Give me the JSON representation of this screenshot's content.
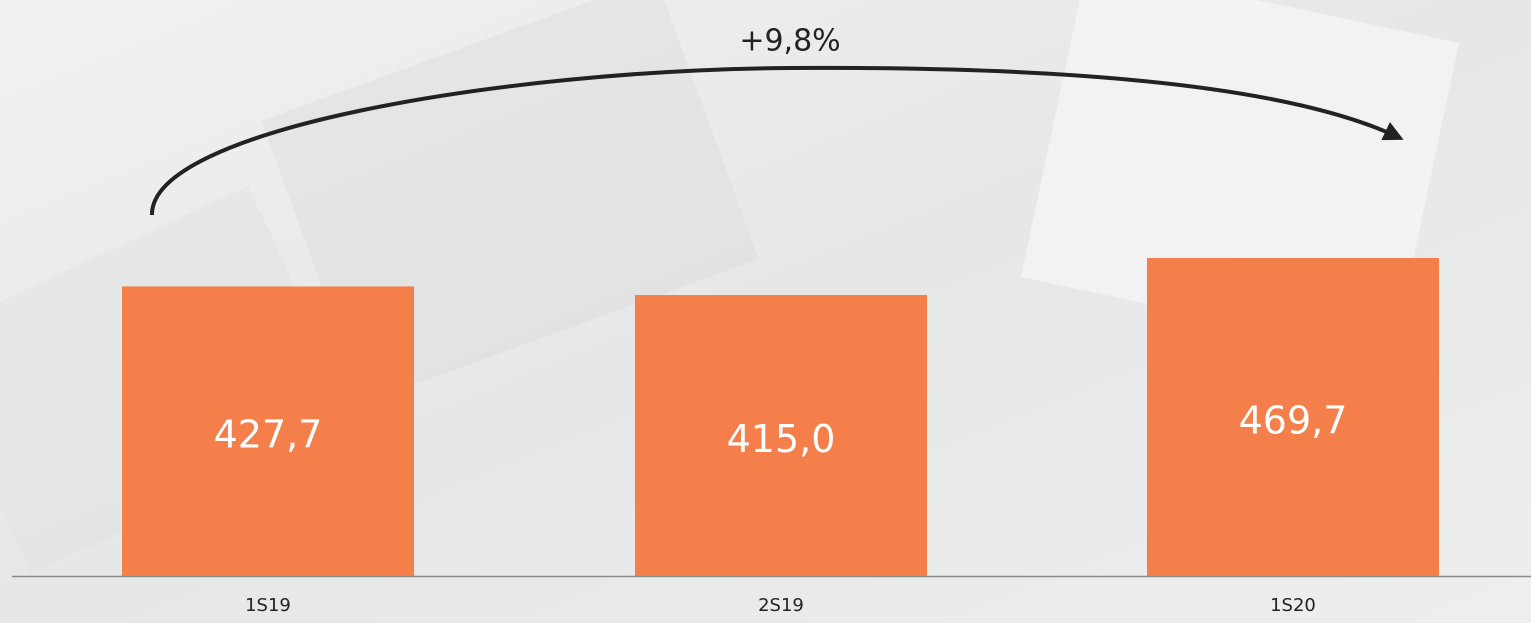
{
  "chart_data": {
    "type": "bar",
    "annotation": "+9,8%",
    "categories": [
      "1S19",
      "2S19",
      "1S20"
    ],
    "values": [
      427.7,
      415.0,
      469.7
    ],
    "value_labels": [
      "427,7",
      "415,0",
      "469,7"
    ],
    "color": "#f47f4a"
  }
}
